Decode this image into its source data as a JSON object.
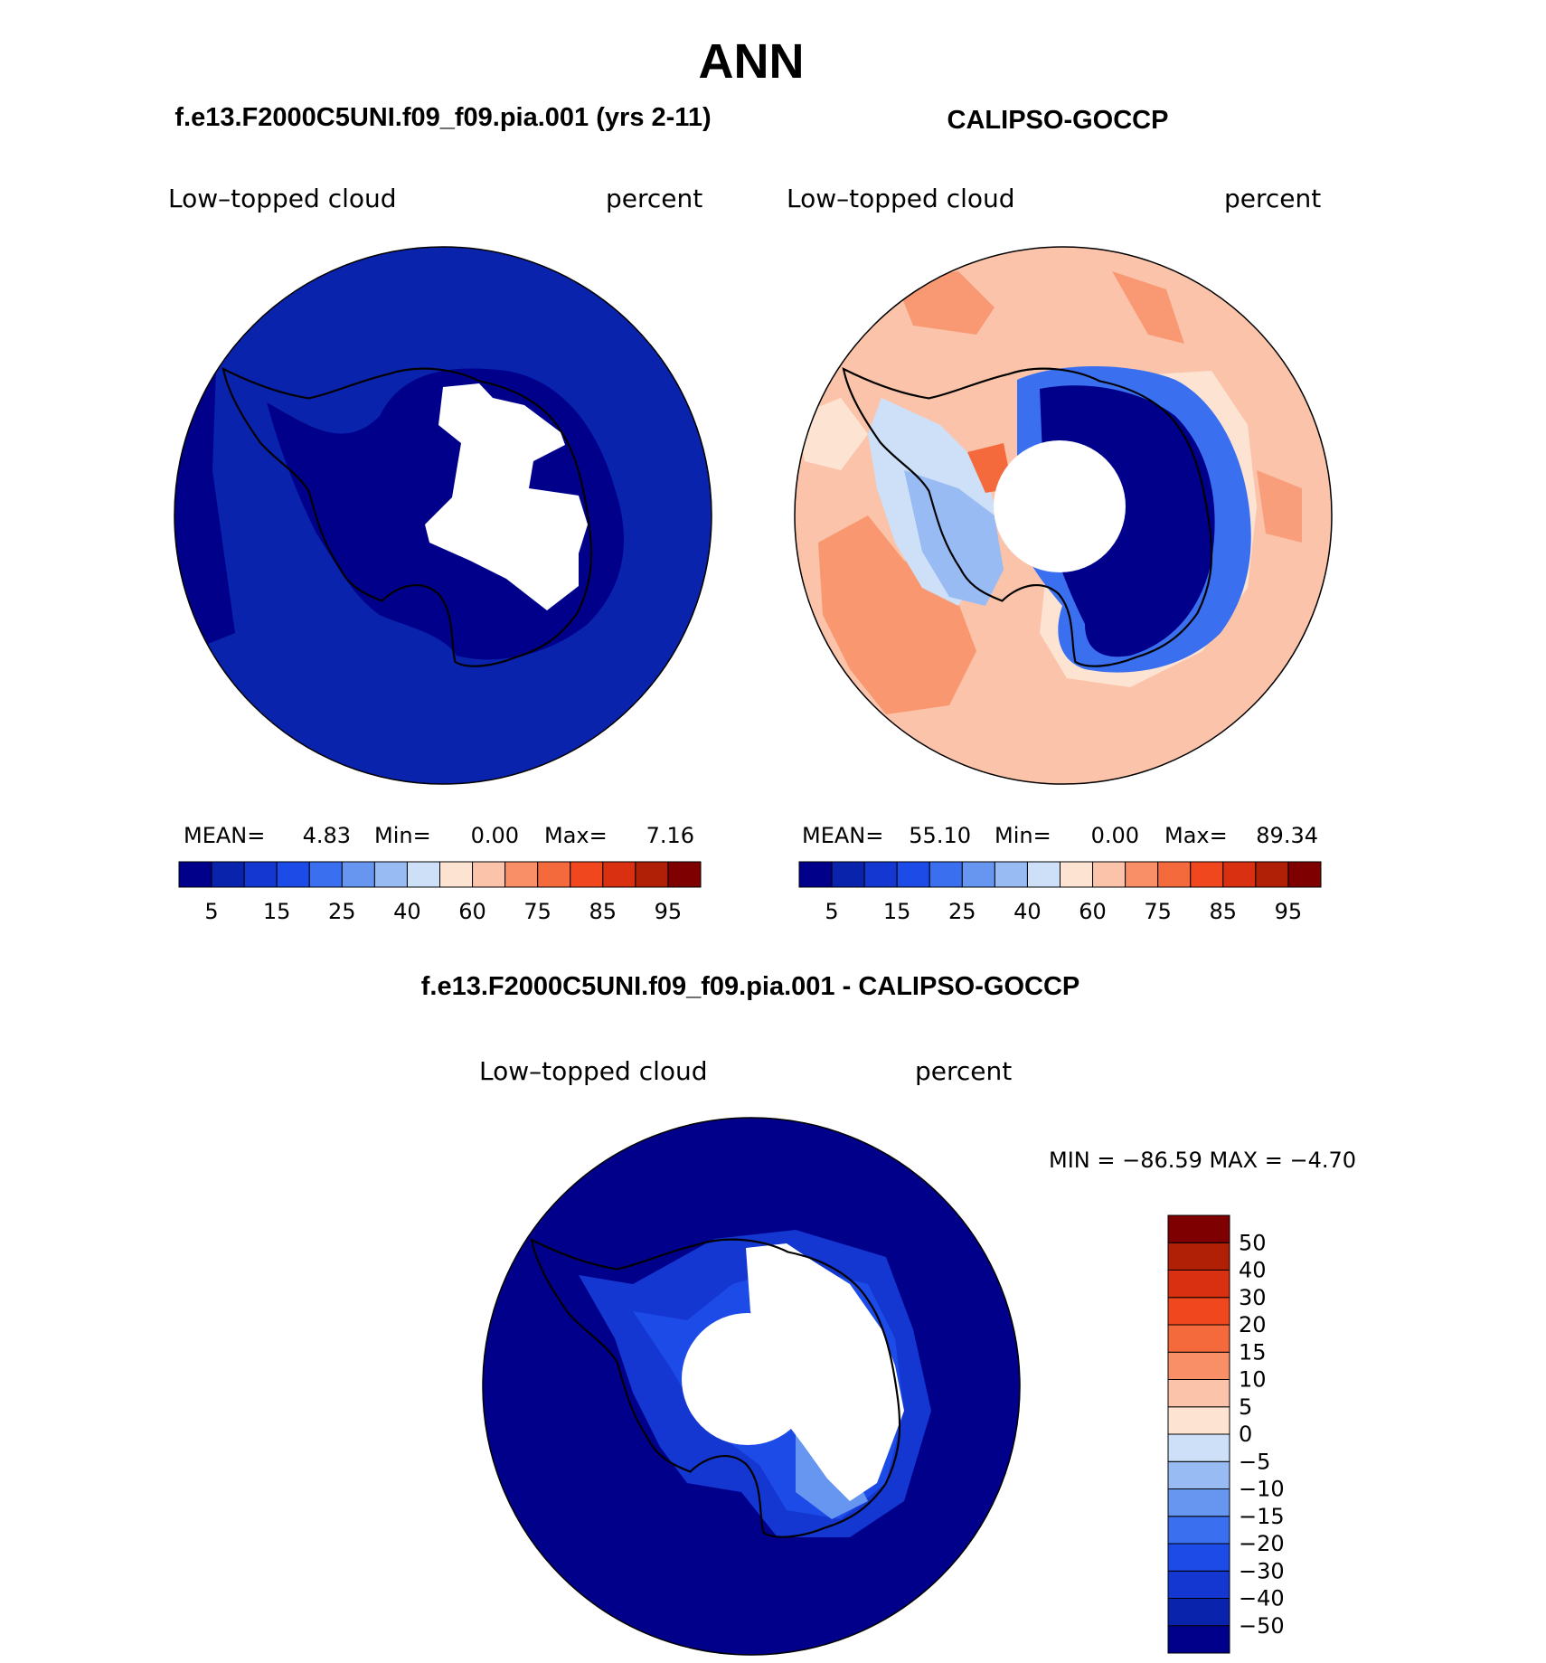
{
  "figure": {
    "title": "ANN",
    "left_panel_title": "f.e13.F2000C5UNI.f09_f09.pia.001 (yrs 2-11)",
    "right_panel_title": "CALIPSO-GOCCP",
    "diff_panel_title": "f.e13.F2000C5UNI.f09_f09.pia.001 - CALIPSO-GOCCP"
  },
  "panels": {
    "model": {
      "variable": "Low–topped cloud",
      "units": "percent",
      "mean_label": "MEAN=",
      "mean_value": "4.83",
      "min_label": "Min=",
      "min_value": "0.00",
      "max_label": "Max=",
      "max_value": "7.16"
    },
    "obs": {
      "variable": "Low–topped cloud",
      "units": "percent",
      "mean_label": "MEAN=",
      "mean_value": "55.10",
      "min_label": "Min=",
      "min_value": "0.00",
      "max_label": "Max=",
      "max_value": "89.34"
    },
    "diff": {
      "variable": "Low–topped cloud",
      "units": "percent",
      "minmax_text": "MIN = −86.59 MAX =  −4.70"
    }
  },
  "colorbars": {
    "abs_colors": [
      "#00008b",
      "#0a23ac",
      "#1337d0",
      "#1d4be8",
      "#3a6ff0",
      "#6696f0",
      "#99bbf4",
      "#cde0f8",
      "#fde4d2",
      "#fbc4aa",
      "#f88f66",
      "#f56a3c",
      "#f0471e",
      "#d93012",
      "#b02007",
      "#7f0000"
    ],
    "abs_labels": [
      "5",
      "15",
      "25",
      "40",
      "60",
      "75",
      "85",
      "95"
    ],
    "diff_colors": [
      "#00008b",
      "#0a23ac",
      "#1337d0",
      "#1d4be8",
      "#3a6ff0",
      "#6696f0",
      "#99bbf4",
      "#cde0f8",
      "#fde4d2",
      "#fbc4aa",
      "#f88f66",
      "#f56a3c",
      "#f0471e",
      "#d93012",
      "#b02007",
      "#7f0000"
    ],
    "diff_labels": [
      "−50",
      "−40",
      "−30",
      "−20",
      "−15",
      "−10",
      "−5",
      "0",
      "5",
      "10",
      "15",
      "20",
      "30",
      "40",
      "50"
    ]
  },
  "map_colors": {
    "ocean_model": "#0a23ac",
    "land_model": "#00008b",
    "ocean_obs": "#fbc4aa",
    "obs_light": "#fde4d2",
    "obs_warm": "#f88f66",
    "obs_cold": "#00008b",
    "ocean_diff": "#00008b",
    "diff_mid": "#1d4be8",
    "missing": "#ffffff",
    "coast": "#000000"
  }
}
